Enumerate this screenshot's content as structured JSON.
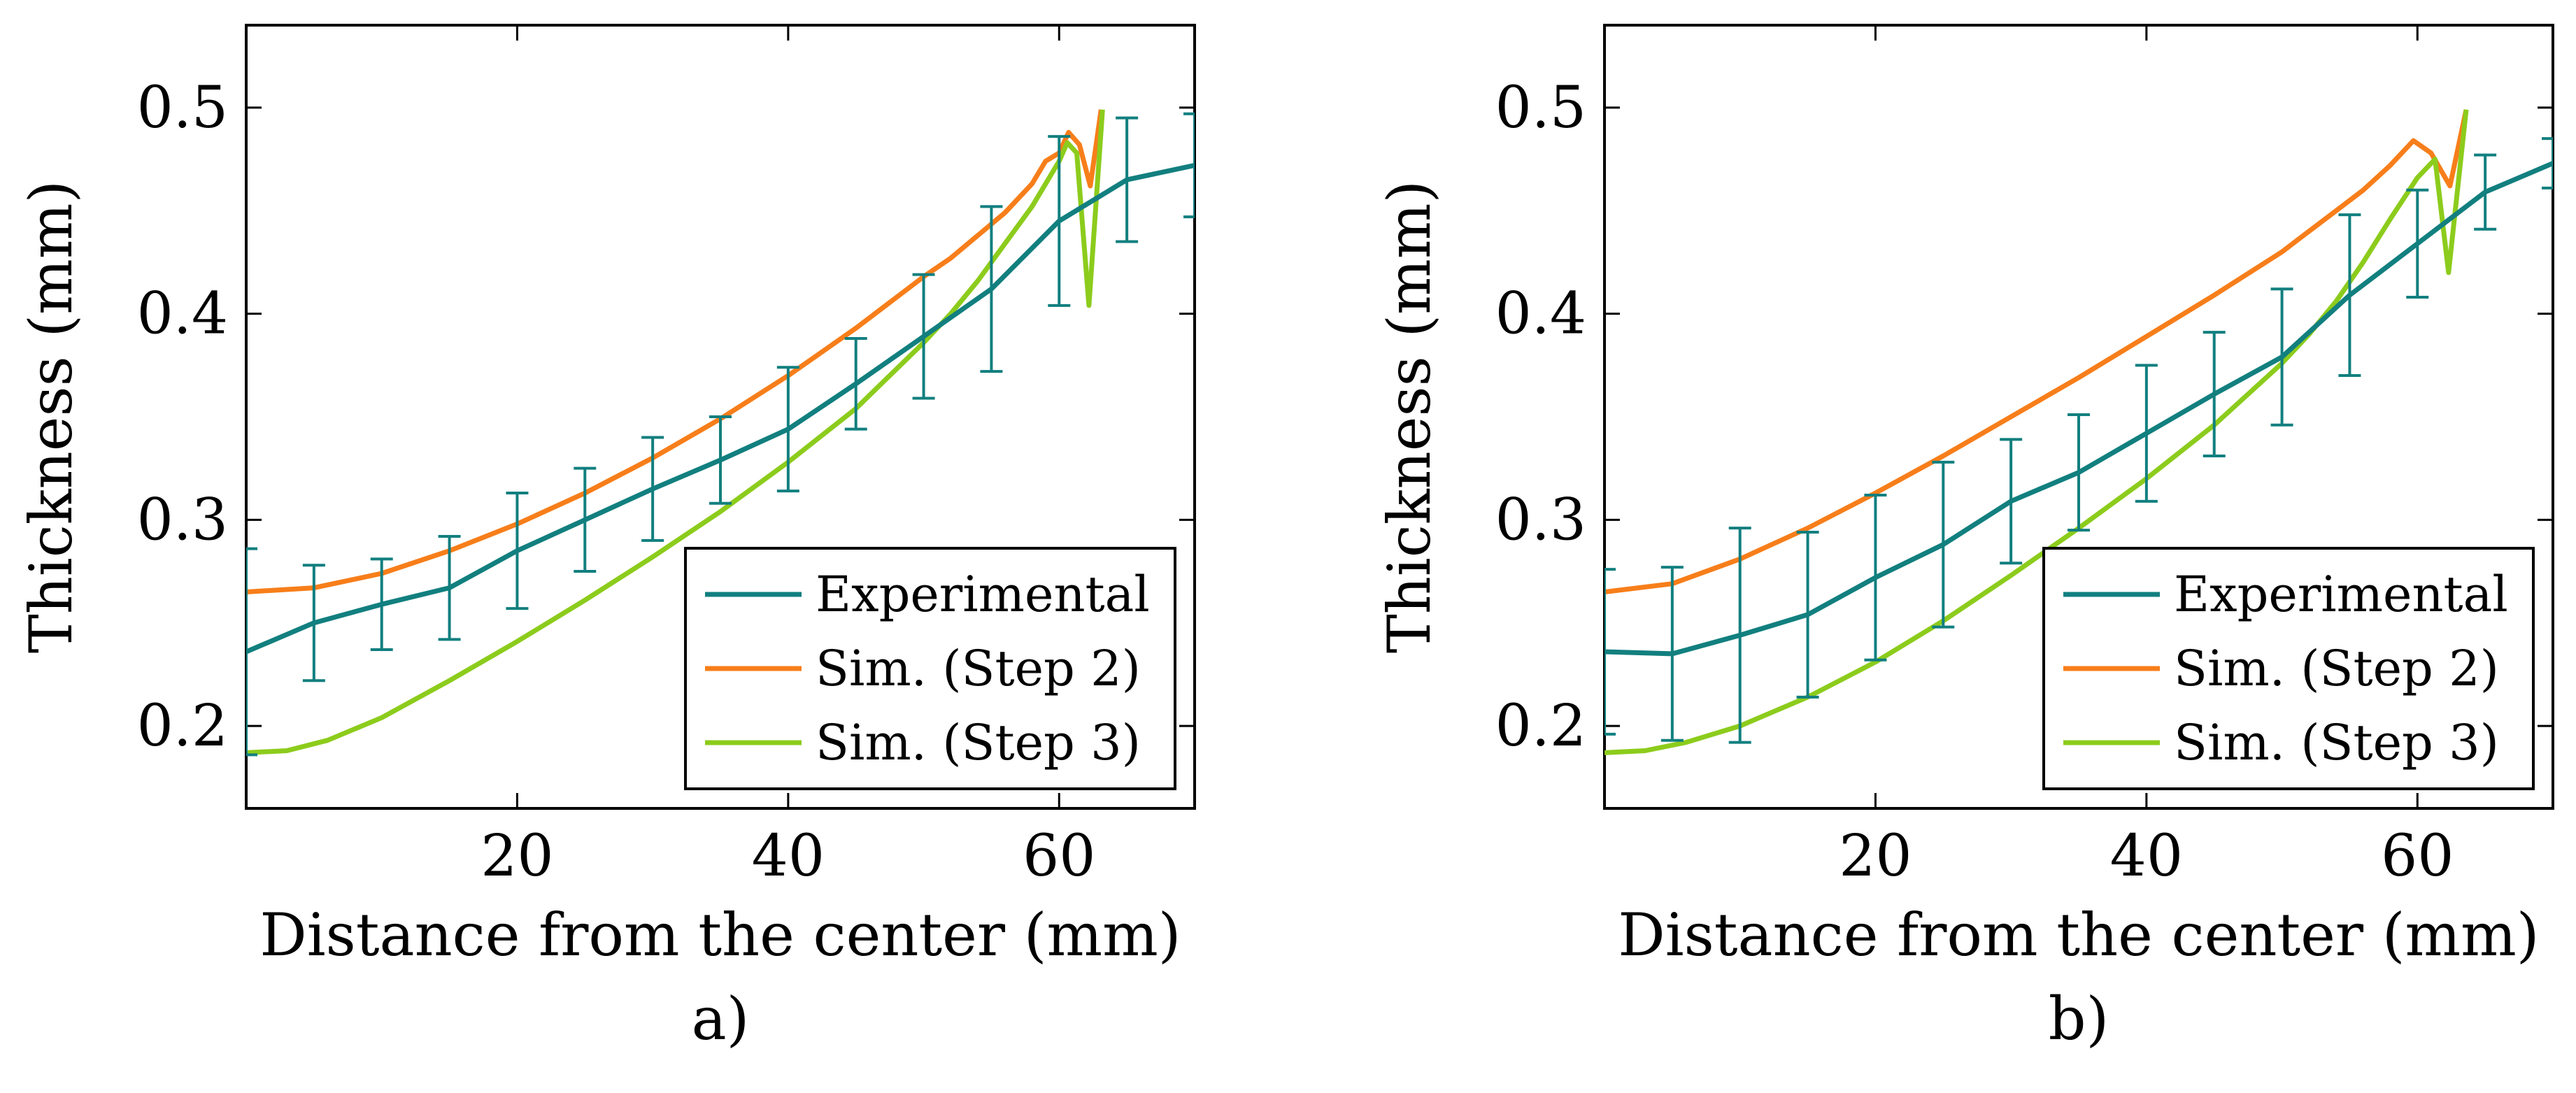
{
  "colors": {
    "experimental": "#127f7f",
    "step2": "#f77e1a",
    "step3": "#8ccc1c"
  },
  "chart_data": [
    {
      "type": "line",
      "panel_label": "a)",
      "xlabel": "Distance from the center (mm)",
      "ylabel": "Thickness (mm)",
      "xlim": [
        0,
        70
      ],
      "ylim": [
        0.16,
        0.54
      ],
      "xticks": [
        20,
        40,
        60
      ],
      "xtick_labels": [
        "20",
        "40",
        "60"
      ],
      "yticks": [
        0.2,
        0.3,
        0.4,
        0.5
      ],
      "ytick_labels": [
        "0.2",
        "0.3",
        "0.4",
        "0.5"
      ],
      "legend_position": "bottom-right",
      "series": [
        {
          "name": "Experimental",
          "color_key": "experimental",
          "points": [
            [
              0,
              0.236
            ],
            [
              5,
              0.25
            ],
            [
              10,
              0.259
            ],
            [
              15,
              0.267
            ],
            [
              20,
              0.285
            ],
            [
              25,
              0.3
            ],
            [
              30,
              0.315
            ],
            [
              35,
              0.329
            ],
            [
              40,
              0.344
            ],
            [
              45,
              0.366
            ],
            [
              50,
              0.389
            ],
            [
              55,
              0.412
            ],
            [
              60,
              0.445
            ],
            [
              65,
              0.465
            ],
            [
              70,
              0.472
            ]
          ],
          "error": [
            0.05,
            0.028,
            0.022,
            0.025,
            0.028,
            0.025,
            0.025,
            0.021,
            0.03,
            0.022,
            0.03,
            0.04,
            0.041,
            0.03,
            0.025
          ]
        },
        {
          "name": "Sim. (Step 2)",
          "color_key": "step2",
          "points": [
            [
              0,
              0.265
            ],
            [
              5,
              0.267
            ],
            [
              10,
              0.274
            ],
            [
              15,
              0.285
            ],
            [
              20,
              0.298
            ],
            [
              25,
              0.313
            ],
            [
              30,
              0.33
            ],
            [
              35,
              0.349
            ],
            [
              40,
              0.37
            ],
            [
              45,
              0.393
            ],
            [
              50,
              0.418
            ],
            [
              52,
              0.427
            ],
            [
              54,
              0.438
            ],
            [
              56,
              0.449
            ],
            [
              58,
              0.463
            ],
            [
              59,
              0.474
            ],
            [
              60,
              0.478
            ],
            [
              60.7,
              0.488
            ],
            [
              61.5,
              0.482
            ],
            [
              62.3,
              0.462
            ],
            [
              63.1,
              0.499
            ]
          ]
        },
        {
          "name": "Sim. (Step 3)",
          "color_key": "step3",
          "points": [
            [
              0,
              0.187
            ],
            [
              3,
              0.188
            ],
            [
              6,
              0.193
            ],
            [
              10,
              0.204
            ],
            [
              15,
              0.222
            ],
            [
              20,
              0.241
            ],
            [
              25,
              0.261
            ],
            [
              30,
              0.282
            ],
            [
              35,
              0.304
            ],
            [
              40,
              0.328
            ],
            [
              45,
              0.354
            ],
            [
              50,
              0.386
            ],
            [
              52,
              0.4
            ],
            [
              54,
              0.416
            ],
            [
              56,
              0.434
            ],
            [
              58,
              0.452
            ],
            [
              59,
              0.463
            ],
            [
              60,
              0.474
            ],
            [
              60.6,
              0.483
            ],
            [
              61.3,
              0.478
            ],
            [
              62.2,
              0.404
            ],
            [
              63.2,
              0.499
            ]
          ]
        }
      ]
    },
    {
      "type": "line",
      "panel_label": "b)",
      "xlabel": "Distance from the center (mm)",
      "ylabel": "Thickness (mm)",
      "xlim": [
        0,
        70
      ],
      "ylim": [
        0.16,
        0.54
      ],
      "xticks": [
        20,
        40,
        60
      ],
      "xtick_labels": [
        "20",
        "40",
        "60"
      ],
      "yticks": [
        0.2,
        0.3,
        0.4,
        0.5
      ],
      "ytick_labels": [
        "0.2",
        "0.3",
        "0.4",
        "0.5"
      ],
      "legend_position": "bottom-right",
      "series": [
        {
          "name": "Experimental",
          "color_key": "experimental",
          "points": [
            [
              0,
              0.236
            ],
            [
              5,
              0.235
            ],
            [
              10,
              0.244
            ],
            [
              15,
              0.254
            ],
            [
              20,
              0.272
            ],
            [
              25,
              0.288
            ],
            [
              30,
              0.309
            ],
            [
              35,
              0.323
            ],
            [
              40,
              0.342
            ],
            [
              45,
              0.361
            ],
            [
              50,
              0.379
            ],
            [
              55,
              0.409
            ],
            [
              60,
              0.434
            ],
            [
              65,
              0.459
            ],
            [
              70,
              0.473
            ]
          ],
          "error": [
            0.04,
            0.042,
            0.052,
            0.04,
            0.04,
            0.04,
            0.03,
            0.028,
            0.033,
            0.03,
            0.033,
            0.039,
            0.026,
            0.018,
            0.012
          ]
        },
        {
          "name": "Sim. (Step 2)",
          "color_key": "step2",
          "points": [
            [
              0,
              0.265
            ],
            [
              5,
              0.269
            ],
            [
              10,
              0.281
            ],
            [
              15,
              0.296
            ],
            [
              20,
              0.313
            ],
            [
              25,
              0.331
            ],
            [
              30,
              0.35
            ],
            [
              35,
              0.369
            ],
            [
              40,
              0.389
            ],
            [
              45,
              0.409
            ],
            [
              50,
              0.43
            ],
            [
              52,
              0.44
            ],
            [
              54,
              0.45
            ],
            [
              56,
              0.46
            ],
            [
              58,
              0.472
            ],
            [
              59.7,
              0.484
            ],
            [
              61,
              0.478
            ],
            [
              62.4,
              0.462
            ],
            [
              63.6,
              0.499
            ]
          ]
        },
        {
          "name": "Sim. (Step 3)",
          "color_key": "step3",
          "points": [
            [
              0,
              0.187
            ],
            [
              3,
              0.188
            ],
            [
              6,
              0.192
            ],
            [
              10,
              0.2
            ],
            [
              15,
              0.214
            ],
            [
              20,
              0.231
            ],
            [
              25,
              0.251
            ],
            [
              30,
              0.273
            ],
            [
              35,
              0.296
            ],
            [
              40,
              0.32
            ],
            [
              45,
              0.346
            ],
            [
              50,
              0.376
            ],
            [
              52,
              0.39
            ],
            [
              54,
              0.406
            ],
            [
              56,
              0.425
            ],
            [
              58,
              0.446
            ],
            [
              60,
              0.466
            ],
            [
              61.3,
              0.475
            ],
            [
              62.3,
              0.42
            ],
            [
              63.6,
              0.499
            ]
          ]
        }
      ]
    }
  ]
}
